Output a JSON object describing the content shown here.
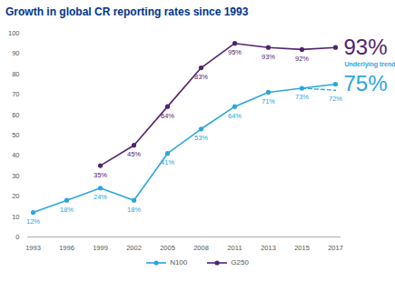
{
  "chart_data": {
    "type": "line",
    "title": "Growth in global CR reporting rates since 1993",
    "categories": [
      "1993",
      "1996",
      "1999",
      "2002",
      "2005",
      "2008",
      "2011",
      "2013",
      "2015",
      "2017"
    ],
    "series": [
      {
        "name": "N100",
        "color": "#2ba6de",
        "marker": "circle",
        "values": [
          12,
          18,
          24,
          18,
          41,
          53,
          64,
          71,
          73,
          75
        ],
        "value_labels": [
          "12%",
          "18%",
          "24%",
          "18%",
          "41%",
          "53%",
          "64%",
          "71%",
          "73%",
          "75%"
        ]
      },
      {
        "name": "G250",
        "color": "#52246f",
        "marker": "circle",
        "values": [
          null,
          null,
          35,
          45,
          64,
          83,
          95,
          93,
          92,
          93
        ],
        "value_labels": [
          null,
          null,
          "35%",
          "45%",
          "64%",
          "83%",
          "95%",
          "93%",
          "92%",
          "93%"
        ]
      }
    ],
    "annotations": [
      {
        "text": "Underlying trend¹",
        "categories": [
          "2015",
          "2017"
        ],
        "values": [
          73,
          72
        ],
        "value_labels": [
          null,
          "72%"
        ],
        "color": "#2ba6de",
        "line_style": "dashed"
      }
    ],
    "ylim": [
      0,
      100
    ],
    "yticks": [
      0,
      10,
      20,
      30,
      40,
      50,
      60,
      70,
      80,
      90,
      100
    ],
    "grid": false,
    "data_labels": true,
    "legend": "bottom"
  }
}
